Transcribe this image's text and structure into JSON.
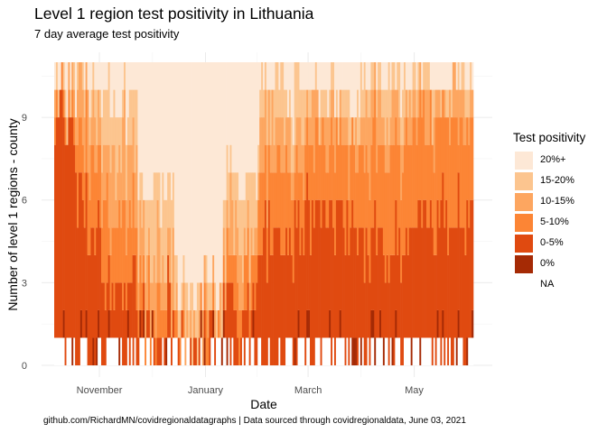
{
  "chart_data": {
    "type": "bar",
    "title": "Level 1 region test positivity in Lithuania",
    "subtitle": "7 day average test positivity",
    "xlabel": "Date",
    "ylabel": "Number of level 1 regions - county",
    "caption": "github.com/RichardMN/covidregionaldatagraphs | Data sourced through covidregionaldata, June 03, 2021",
    "x_range": [
      "2020-10-06",
      "2021-06-03"
    ],
    "x_ticks": [
      {
        "date": "2020-11-01",
        "label": "November"
      },
      {
        "date": "2021-01-01",
        "label": "January"
      },
      {
        "date": "2021-03-01",
        "label": "March"
      },
      {
        "date": "2021-05-01",
        "label": "May"
      }
    ],
    "ylim": [
      0,
      11
    ],
    "y_ticks": [
      0,
      3,
      6,
      9
    ],
    "stacking": "stacked bar per day, one unit per county; counties ordered from lowest category at bottom to highest at top",
    "legend": {
      "title": "Test positivity",
      "placement": "right",
      "items": [
        {
          "label": "20%+",
          "color": "#FDE8D6"
        },
        {
          "label": "15-20%",
          "color": "#FCC58F"
        },
        {
          "label": "10-15%",
          "color": "#FDA660"
        },
        {
          "label": "5-10%",
          "color": "#FC8535"
        },
        {
          "label": "0-5%",
          "color": "#E04A10"
        },
        {
          "label": "0%",
          "color": "#A52A05"
        },
        {
          "label": "NA",
          "color": "#FFFFFF"
        }
      ]
    },
    "series_by_period": [
      {
        "from": "2020-10-06",
        "to": "2020-10-18",
        "NA": 1,
        "0%": 0.3,
        "0-5%": 7.7,
        "5-10%": 1.0,
        "10-15%": 0.3,
        "15-20%": 0.2,
        "20%+": 0.5
      },
      {
        "from": "2020-10-19",
        "to": "2020-11-01",
        "NA": 1,
        "0%": 0.2,
        "0-5%": 4.5,
        "5-10%": 2.5,
        "10-15%": 1.3,
        "15-20%": 0.7,
        "20%+": 0.8
      },
      {
        "from": "2020-11-02",
        "to": "2020-11-22",
        "NA": 1,
        "0%": 0.1,
        "0-5%": 2.0,
        "5-10%": 2.5,
        "10-15%": 2.3,
        "15-20%": 2.0,
        "20%+": 1.1
      },
      {
        "from": "2020-11-23",
        "to": "2020-12-13",
        "NA": 1,
        "0%": 0.1,
        "0-5%": 0.7,
        "5-10%": 1.0,
        "10-15%": 1.5,
        "15-20%": 2.2,
        "20%+": 4.5
      },
      {
        "from": "2020-12-14",
        "to": "2021-01-10",
        "NA": 1,
        "0%": 0.0,
        "0-5%": 0.2,
        "5-10%": 0.3,
        "10-15%": 0.5,
        "15-20%": 1.0,
        "20%+": 8.0
      },
      {
        "from": "2021-01-11",
        "to": "2021-01-31",
        "NA": 1,
        "0%": 0.0,
        "0-5%": 1.5,
        "5-10%": 1.2,
        "10-15%": 1.3,
        "15-20%": 2.0,
        "20%+": 4.0
      },
      {
        "from": "2021-02-01",
        "to": "2021-02-28",
        "NA": 1,
        "0%": 0.1,
        "0-5%": 4.0,
        "5-10%": 2.3,
        "10-15%": 1.5,
        "15-20%": 1.3,
        "20%+": 0.8
      },
      {
        "from": "2021-03-01",
        "to": "2021-03-31",
        "NA": 1,
        "0%": 0.1,
        "0-5%": 4.5,
        "5-10%": 2.5,
        "10-15%": 1.0,
        "15-20%": 0.8,
        "20%+": 1.1
      },
      {
        "from": "2021-04-01",
        "to": "2021-04-30",
        "NA": 1,
        "0%": 0.1,
        "0-5%": 3.5,
        "5-10%": 3.5,
        "10-15%": 1.5,
        "15-20%": 0.8,
        "20%+": 0.6
      },
      {
        "from": "2021-05-01",
        "to": "2021-06-03",
        "NA": 1,
        "0%": 0.2,
        "0-5%": 4.5,
        "5-10%": 3.5,
        "10-15%": 0.9,
        "15-20%": 0.4,
        "20%+": 0.5
      }
    ]
  }
}
